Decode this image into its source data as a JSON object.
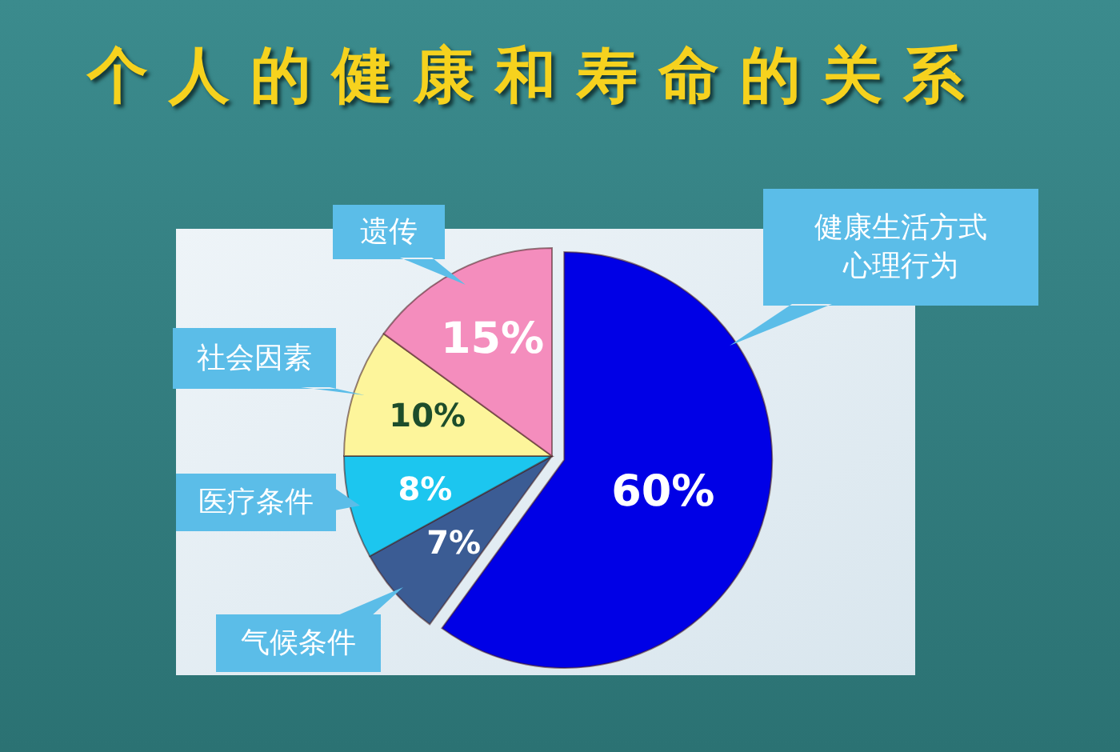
{
  "chart_data": {
    "type": "pie",
    "title": "个人的健康和寿命的关系",
    "categories": [
      "健康生活方式心理行为",
      "气候条件",
      "医疗条件",
      "社会因素",
      "遗传"
    ],
    "values": [
      60,
      7,
      8,
      10,
      15
    ],
    "colors": [
      "#0000e6",
      "#3b5c94",
      "#1cc6ef",
      "#fdf59b",
      "#f48dbd"
    ],
    "value_labels": [
      "60%",
      "7%",
      "8%",
      "10%",
      "15%"
    ]
  }
}
